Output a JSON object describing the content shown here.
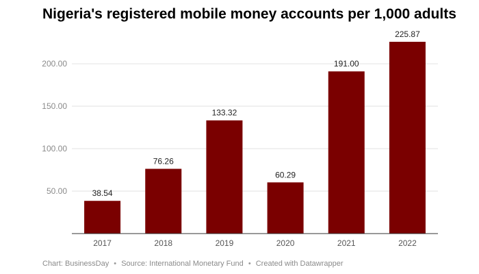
{
  "chart_data": {
    "type": "bar",
    "title": "Nigeria's registered mobile money accounts per 1,000 adults",
    "categories": [
      "2017",
      "2018",
      "2019",
      "2020",
      "2021",
      "2022"
    ],
    "values": [
      38.54,
      76.26,
      133.32,
      60.29,
      191.0,
      225.87
    ],
    "value_labels": [
      "38.54",
      "76.26",
      "133.32",
      "60.29",
      "191.00",
      "225.87"
    ],
    "y_ticks": [
      50,
      100,
      150,
      200
    ],
    "y_tick_labels": [
      "50.00",
      "100.00",
      "150.00",
      "200.00"
    ],
    "ylim": [
      0,
      225.87
    ],
    "grid": true,
    "xlabel": "",
    "ylabel": "",
    "colors": {
      "bar": "#7a0000",
      "grid": "#e2e2e2",
      "axis": "#333333"
    }
  },
  "footer": {
    "chart_credit": "Chart: BusinessDay",
    "source": "Source: International Monetary Fund",
    "created": "Created with Datawrapper",
    "separator": "•"
  }
}
